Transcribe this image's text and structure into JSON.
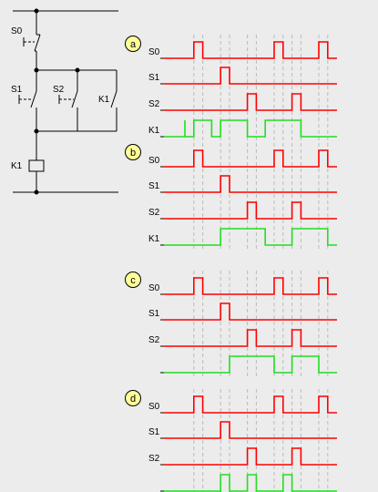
{
  "circuit": {
    "labels": {
      "s0": "S0",
      "s1": "S1",
      "s2": "S2",
      "k1_contact": "K1",
      "k1_coil": "K1"
    }
  },
  "colors": {
    "background": "#ececec",
    "input_signal": "#ff0000",
    "output_signal": "#22dd22",
    "option_badge": "#ffff99",
    "guide_line": "#bbbbbb",
    "wiring": "#000000"
  },
  "timing_options": [
    {
      "label": "a",
      "rows": [
        {
          "label": "S0"
        },
        {
          "label": "S1"
        },
        {
          "label": "S2"
        },
        {
          "label": "K1"
        }
      ],
      "output_label": "K1",
      "output_edges": [
        [
          0,
          0
        ],
        [
          1,
          3
        ],
        [
          4,
          7
        ],
        [
          9,
          13
        ]
      ]
    },
    {
      "label": "b",
      "rows": [
        {
          "label": "S0"
        },
        {
          "label": "S1"
        },
        {
          "label": "S2"
        },
        {
          "label": "K1"
        }
      ],
      "output_label": "K1",
      "output_edges": [
        [
          4,
          9
        ],
        [
          12,
          16
        ]
      ]
    },
    {
      "label": "c",
      "rows": [
        {
          "label": "S0"
        },
        {
          "label": "S1"
        },
        {
          "label": "S2"
        },
        {
          "label": ""
        }
      ],
      "output_label": "",
      "output_edges": [
        [
          5,
          10
        ],
        [
          12,
          15
        ]
      ]
    },
    {
      "label": "d",
      "rows": [
        {
          "label": "S0"
        },
        {
          "label": "S1"
        },
        {
          "label": "S2"
        },
        {
          "label": ""
        }
      ],
      "output_label": "",
      "output_edges": [
        [
          4,
          5
        ],
        [
          7,
          8
        ],
        [
          11,
          12
        ]
      ]
    }
  ],
  "input_pulses": {
    "S0": [
      [
        1,
        2
      ],
      [
        10,
        11
      ],
      [
        15,
        16
      ]
    ],
    "S1": [
      [
        4,
        5
      ]
    ],
    "S2": [
      [
        7,
        8
      ],
      [
        12,
        13
      ]
    ]
  }
}
